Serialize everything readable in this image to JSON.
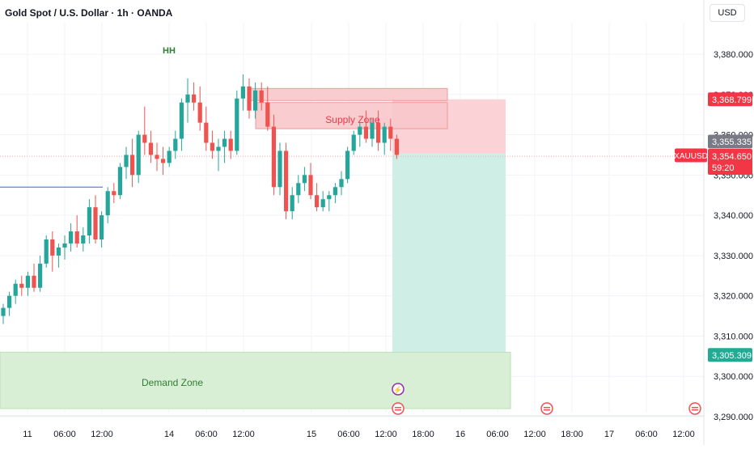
{
  "header": {
    "title": "Gold Spot / U.S. Dollar · 1h · OANDA",
    "currency_label": "USD"
  },
  "colors": {
    "up": "#26a69a",
    "down": "#ef5350",
    "supply_fill": "#f8c7cb",
    "demand_fill": "#d8efd6",
    "target_fill": "#cfeee6",
    "stop_fill": "#fbd3d6",
    "label_red": "#f23645",
    "label_grey": "#787b86",
    "label_green": "#22ab94",
    "hline_blue": "#2962ff"
  },
  "chart_data": {
    "type": "candlestick",
    "symbol": "XAUUSD",
    "y_ticks": [
      3290,
      3300,
      3310,
      3320,
      3330,
      3340,
      3350,
      3360,
      3370,
      3380
    ],
    "y_tick_labels": [
      "3,290.000",
      "3,300.000",
      "3,310.000",
      "3,320.000",
      "3,330.000",
      "3,340.000",
      "3,350.000",
      "3,360.000",
      "3,370.000",
      "3,380.000"
    ],
    "x_ticks": [
      "11",
      "06:00",
      "12:00",
      "14",
      "06:00",
      "12:00",
      "15",
      "06:00",
      "12:00",
      "18:00",
      "16",
      "06:00",
      "12:00",
      "18:00",
      "17",
      "06:00",
      "12:00"
    ],
    "price_labels": [
      {
        "label": "3,368.799",
        "value": 3368.799,
        "style": "red"
      },
      {
        "label": "3,355.335",
        "value": 3355.335,
        "style": "grey"
      },
      {
        "label": "3,354.650",
        "value": 3354.65,
        "style": "red"
      },
      {
        "label": "59:20",
        "style": "red"
      },
      {
        "label": "3,305.309",
        "value": 3305.309,
        "style": "green"
      }
    ],
    "current_price": 3354.65,
    "annotations": [
      {
        "text": "HH",
        "value": 3381
      },
      {
        "text": "Supply Zone"
      },
      {
        "text": "Demand Zone"
      }
    ],
    "zones": {
      "supply_upper": [
        3368.5,
        3371.5
      ],
      "supply_lower": [
        3361.5,
        3368.0
      ],
      "demand": [
        3292,
        3306
      ],
      "stop": [
        3355.3,
        3368.8
      ],
      "target": [
        3305.3,
        3355.3
      ]
    },
    "blue_line_value": 3347,
    "candles": [
      [
        3315,
        3318,
        3313,
        3317
      ],
      [
        3317,
        3321,
        3315,
        3320
      ],
      [
        3320,
        3324,
        3318,
        3323
      ],
      [
        3323,
        3325,
        3320,
        3322
      ],
      [
        3322,
        3326,
        3320,
        3325
      ],
      [
        3325,
        3328,
        3321,
        3322
      ],
      [
        3322,
        3330,
        3321,
        3328
      ],
      [
        3328,
        3335,
        3327,
        3334
      ],
      [
        3334,
        3336,
        3326,
        3330
      ],
      [
        3330,
        3333,
        3327,
        3332
      ],
      [
        3332,
        3335,
        3329,
        3333
      ],
      [
        3333,
        3338,
        3331,
        3336
      ],
      [
        3336,
        3340,
        3332,
        3333
      ],
      [
        3333,
        3337,
        3331,
        3335
      ],
      [
        3335,
        3344,
        3333,
        3342
      ],
      [
        3342,
        3345,
        3333,
        3334
      ],
      [
        3334,
        3341,
        3332,
        3340
      ],
      [
        3340,
        3347,
        3338,
        3346
      ],
      [
        3346,
        3348,
        3343,
        3345
      ],
      [
        3345,
        3353,
        3344,
        3352
      ],
      [
        3352,
        3357,
        3349,
        3355
      ],
      [
        3355,
        3359,
        3347,
        3350
      ],
      [
        3350,
        3361,
        3348,
        3360
      ],
      [
        3360,
        3367,
        3355,
        3358
      ],
      [
        3358,
        3361,
        3353,
        3355
      ],
      [
        3355,
        3358,
        3351,
        3354
      ],
      [
        3354,
        3357,
        3350,
        3353
      ],
      [
        3353,
        3357,
        3352,
        3356
      ],
      [
        3356,
        3361,
        3354,
        3359
      ],
      [
        3359,
        3369,
        3356,
        3368
      ],
      [
        3368,
        3374,
        3363,
        3370
      ],
      [
        3370,
        3373,
        3366,
        3368
      ],
      [
        3368,
        3372,
        3361,
        3363
      ],
      [
        3363,
        3367,
        3356,
        3358
      ],
      [
        3358,
        3361,
        3354,
        3356
      ],
      [
        3356,
        3359,
        3351,
        3357
      ],
      [
        3357,
        3361,
        3353,
        3359
      ],
      [
        3359,
        3361,
        3354,
        3356
      ],
      [
        3356,
        3371,
        3355,
        3369
      ],
      [
        3369,
        3375,
        3366,
        3372
      ],
      [
        3372,
        3374,
        3364,
        3366
      ],
      [
        3366,
        3373,
        3364,
        3371
      ],
      [
        3371,
        3373,
        3366,
        3368
      ],
      [
        3368,
        3372,
        3361,
        3362
      ],
      [
        3362,
        3365,
        3345,
        3347
      ],
      [
        3347,
        3358,
        3345,
        3356
      ],
      [
        3356,
        3358,
        3339,
        3341
      ],
      [
        3341,
        3347,
        3339,
        3345
      ],
      [
        3345,
        3350,
        3343,
        3348
      ],
      [
        3348,
        3352,
        3346,
        3350
      ],
      [
        3350,
        3353,
        3344,
        3345
      ],
      [
        3345,
        3348,
        3341,
        3342
      ],
      [
        3342,
        3346,
        3341,
        3344
      ],
      [
        3344,
        3346,
        3341,
        3345
      ],
      [
        3345,
        3348,
        3343,
        3347
      ],
      [
        3347,
        3351,
        3345,
        3349
      ],
      [
        3349,
        3357,
        3348,
        3356
      ],
      [
        3356,
        3361,
        3355,
        3360
      ],
      [
        3360,
        3363,
        3357,
        3362
      ],
      [
        3362,
        3366,
        3358,
        3359
      ],
      [
        3359,
        3364,
        3357,
        3363
      ],
      [
        3363,
        3366,
        3356,
        3358
      ],
      [
        3358,
        3363,
        3355,
        3362
      ],
      [
        3362,
        3364,
        3356,
        3359
      ],
      [
        3359,
        3360,
        3354,
        3355
      ]
    ]
  }
}
